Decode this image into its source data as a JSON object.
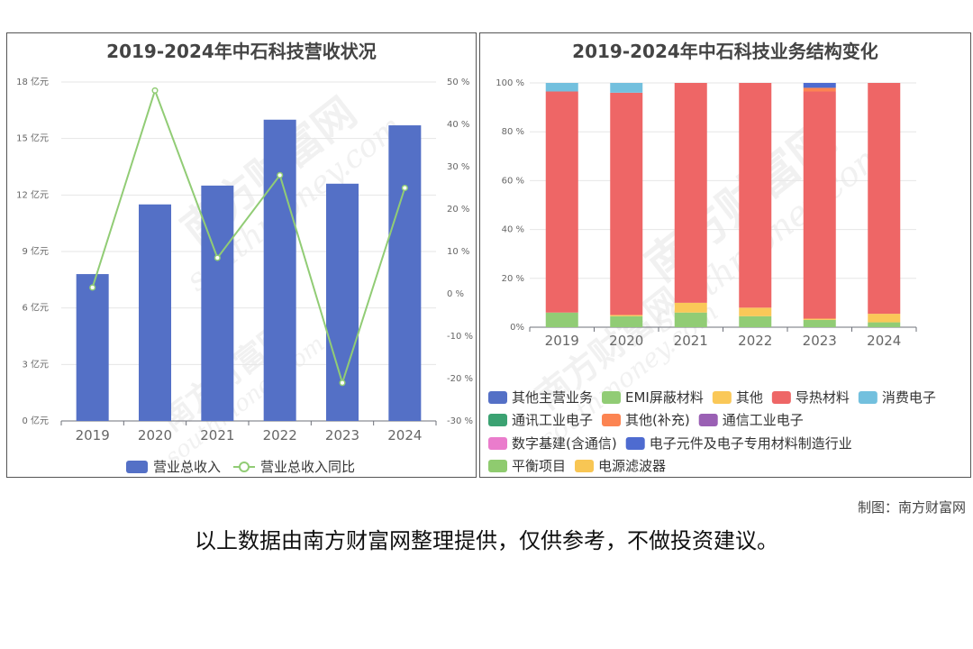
{
  "left_chart": {
    "title": "2019-2024年中石科技营收状况",
    "chart_data": {
      "type": "bar",
      "title": "2019-2024年中石科技营收状况",
      "categories": [
        "2019",
        "2020",
        "2021",
        "2022",
        "2023",
        "2024"
      ],
      "series": [
        {
          "name": "营业总收入",
          "type": "bar",
          "axis": "left",
          "color": "#5470c6",
          "values": [
            7.8,
            11.5,
            12.5,
            16.0,
            12.6,
            15.7
          ]
        },
        {
          "name": "营业总收入同比",
          "type": "line",
          "axis": "right",
          "color": "#91cc75",
          "values": [
            1.5,
            48,
            8.5,
            28,
            -21,
            25
          ]
        }
      ],
      "y_left": {
        "min": 0,
        "max": 18,
        "ticks": [
          "0 亿元",
          "3 亿元",
          "6 亿元",
          "9 亿元",
          "12 亿元",
          "15 亿元",
          "18 亿元"
        ]
      },
      "y_right": {
        "min": -30,
        "max": 50,
        "ticks": [
          "-30 %",
          "-20 %",
          "-10 %",
          "0 %",
          "10 %",
          "20 %",
          "30 %",
          "40 %",
          "50 %"
        ]
      },
      "legend_position": "bottom",
      "grid": true
    }
  },
  "right_chart": {
    "title": "2019-2024年中石科技业务结构变化",
    "chart_data": {
      "type": "bar",
      "stacked": true,
      "title": "2019-2024年中石科技业务结构变化",
      "categories": [
        "2019",
        "2020",
        "2021",
        "2022",
        "2023",
        "2024"
      ],
      "y_ticks": [
        "0%",
        "20 %",
        "40 %",
        "60 %",
        "80 %",
        "100 %"
      ],
      "ylim": [
        0,
        100
      ],
      "series": [
        {
          "name": "其他主营业务",
          "color": "#5470c6",
          "values": [
            0,
            0,
            0,
            0,
            0,
            0
          ]
        },
        {
          "name": "EMI屏蔽材料",
          "color": "#91cc75",
          "values": [
            6,
            4.5,
            6,
            4.5,
            3,
            2
          ]
        },
        {
          "name": "其他",
          "color": "#fac858",
          "values": [
            0,
            0.5,
            4,
            3.5,
            0.5,
            3.5
          ]
        },
        {
          "name": "导热材料",
          "color": "#ee6666",
          "values": [
            90.5,
            91,
            90,
            92,
            93,
            94.5
          ]
        },
        {
          "name": "消费电子",
          "color": "#73c0de",
          "values": [
            3.5,
            4,
            0,
            0,
            0,
            0
          ]
        },
        {
          "name": "通讯工业电子",
          "color": "#3ba272",
          "values": [
            0,
            0,
            0,
            0,
            0,
            0
          ]
        },
        {
          "name": "其他(补充)",
          "color": "#fc8452",
          "values": [
            0,
            0,
            0,
            0,
            1.5,
            0
          ]
        },
        {
          "name": "通信工业电子",
          "color": "#9a60b4",
          "values": [
            0,
            0,
            0,
            0,
            0,
            0
          ]
        },
        {
          "name": "数字基建(含通信)",
          "color": "#ea7ccc",
          "values": [
            0,
            0,
            0,
            0,
            0,
            0
          ]
        },
        {
          "name": "电子元件及电子专用材料制造行业",
          "color": "#4e6bd0",
          "values": [
            0,
            0,
            0,
            0,
            2,
            0
          ]
        },
        {
          "name": "平衡项目",
          "color": "#8fcb6f",
          "values": [
            0,
            0,
            0,
            0,
            0,
            0
          ]
        },
        {
          "name": "电源滤波器",
          "color": "#f8c654",
          "values": [
            0,
            0,
            0,
            0,
            0,
            0
          ]
        }
      ],
      "legend_position": "bottom",
      "grid": true
    }
  },
  "watermark": {
    "cn": "南方财富网",
    "en": "southmoney.com"
  },
  "footer": {
    "source": "制图：南方财富网",
    "disclaimer": "以上数据由南方财富网整理提供，仅供参考，不做投资建议。"
  }
}
